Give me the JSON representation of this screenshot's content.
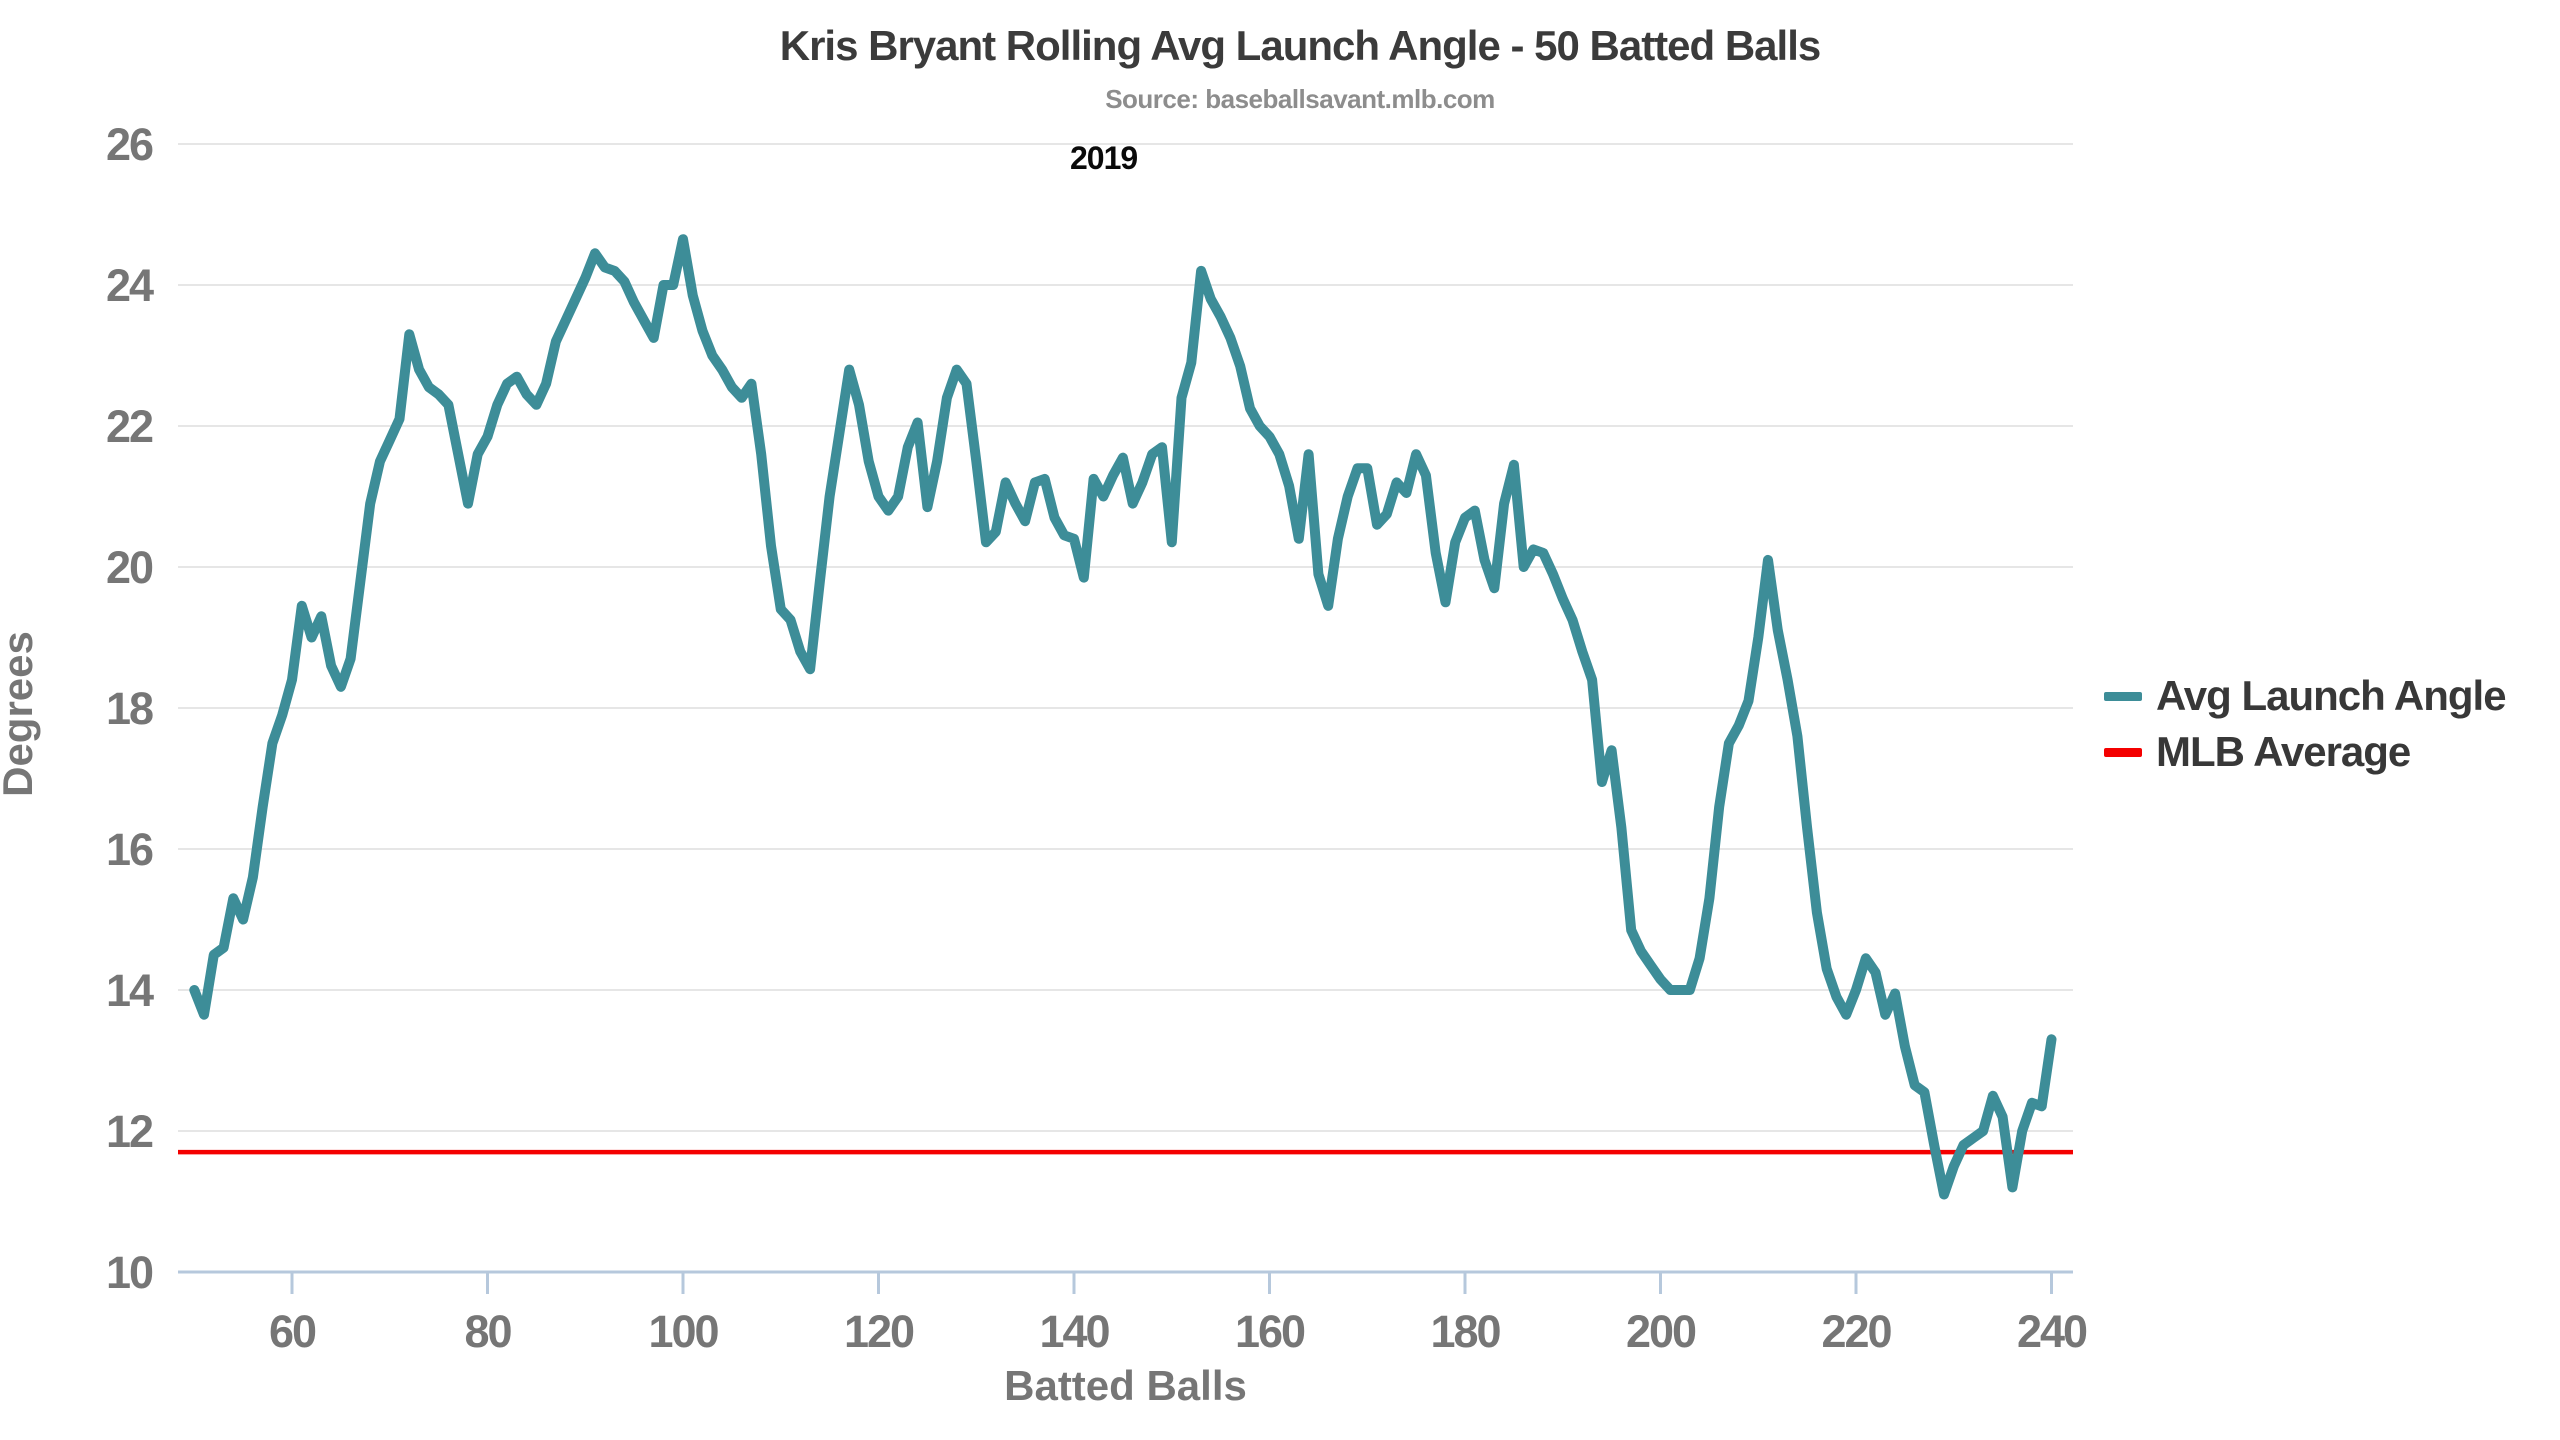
{
  "title": "Kris Bryant Rolling Avg Launch Angle - 50 Batted Balls",
  "subtitle": "Source: baseballsavant.mlb.com",
  "annotation": "2019",
  "legend": [
    {
      "label": "Avg Launch Angle",
      "color": "#3d8d98"
    },
    {
      "label": "MLB Average",
      "color": "#f40000"
    }
  ],
  "colors": {
    "series_teal": "#3d8d98",
    "mlb_red": "#f40000",
    "gridline": "#e6e6e6",
    "axis_blue": "#b6c8dc",
    "tick_label": "#767676",
    "title_text": "#3b3b3b",
    "subtitle_text": "#8d8d8d",
    "background": "#ffffff"
  },
  "chart_data": {
    "type": "line",
    "title": "Kris Bryant Rolling Avg Launch Angle - 50 Batted Balls",
    "subtitle": "Source: baseballsavant.mlb.com",
    "annotation": "2019",
    "xlabel": "Batted Balls",
    "ylabel": "Degrees",
    "xlim": [
      48.3,
      242.2
    ],
    "ylim": [
      10,
      26
    ],
    "xticks": [
      60,
      80,
      100,
      120,
      140,
      160,
      180,
      200,
      220,
      240
    ],
    "yticks": [
      10,
      12,
      14,
      16,
      18,
      20,
      22,
      24,
      26
    ],
    "grid": "horizontal-only",
    "legend_position": "right",
    "mlb_average": 11.7,
    "series": [
      {
        "name": "Avg Launch Angle",
        "x_start": 50,
        "x_step": 1,
        "values": [
          14.0,
          13.65,
          14.5,
          14.6,
          15.3,
          15.0,
          15.6,
          16.6,
          17.5,
          17.9,
          18.4,
          19.45,
          19.0,
          19.3,
          18.6,
          18.3,
          18.7,
          19.8,
          20.9,
          21.5,
          21.8,
          22.1,
          23.3,
          22.8,
          22.55,
          22.45,
          22.3,
          21.6,
          20.9,
          21.6,
          21.85,
          22.3,
          22.6,
          22.7,
          22.45,
          22.3,
          22.6,
          23.2,
          23.5,
          23.8,
          24.1,
          24.45,
          24.25,
          24.2,
          24.05,
          23.75,
          23.5,
          23.25,
          24.0,
          24.0,
          24.65,
          23.85,
          23.35,
          23.0,
          22.8,
          22.55,
          22.4,
          22.6,
          21.6,
          20.3,
          19.4,
          19.25,
          18.8,
          18.55,
          19.8,
          21.0,
          21.9,
          22.8,
          22.3,
          21.5,
          21.0,
          20.8,
          21.0,
          21.7,
          22.05,
          20.85,
          21.5,
          22.4,
          22.8,
          22.6,
          21.5,
          20.35,
          20.5,
          21.2,
          20.9,
          20.65,
          21.2,
          21.25,
          20.7,
          20.45,
          20.4,
          19.85,
          21.25,
          21.0,
          21.3,
          21.55,
          20.9,
          21.2,
          21.6,
          21.7,
          20.35,
          22.4,
          22.9,
          24.2,
          23.8,
          23.55,
          23.25,
          22.85,
          22.25,
          22.0,
          21.85,
          21.6,
          21.15,
          20.4,
          21.6,
          19.9,
          19.45,
          20.4,
          21.0,
          21.4,
          21.4,
          20.6,
          20.75,
          21.2,
          21.05,
          21.6,
          21.3,
          20.2,
          19.5,
          20.35,
          20.7,
          20.8,
          20.1,
          19.7,
          20.9,
          21.45,
          20.0,
          20.25,
          20.2,
          19.9,
          19.55,
          19.25,
          18.8,
          18.4,
          16.95,
          17.4,
          16.3,
          14.85,
          14.55,
          14.35,
          14.15,
          14.0,
          14.0,
          14.0,
          14.45,
          15.3,
          16.6,
          17.5,
          17.75,
          18.1,
          19.0,
          20.1,
          19.1,
          18.4,
          17.6,
          16.3,
          15.1,
          14.3,
          13.9,
          13.65,
          14.0,
          14.45,
          14.25,
          13.65,
          13.95,
          13.2,
          12.65,
          12.55,
          11.8,
          11.1,
          11.5,
          11.8,
          11.9,
          12.0,
          12.5,
          12.2,
          11.2,
          12.0,
          12.4,
          12.35,
          13.3
        ]
      },
      {
        "name": "MLB Average",
        "constant": 11.7
      }
    ]
  }
}
